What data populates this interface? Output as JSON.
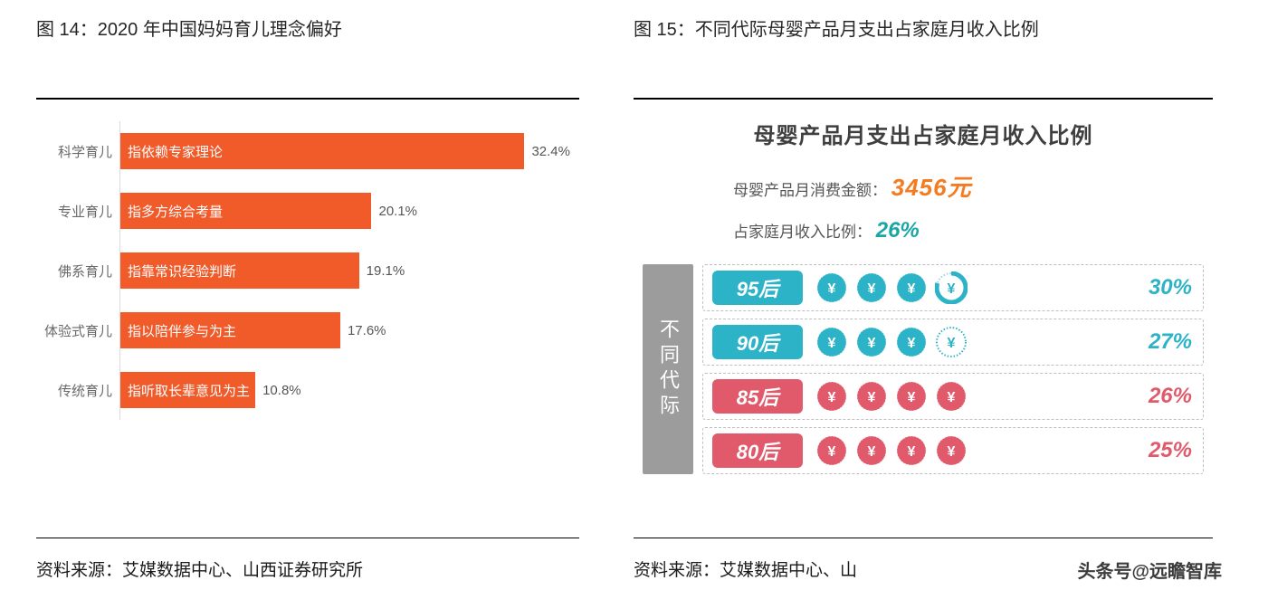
{
  "left": {
    "figure_title": "图 14：2020 年中国妈妈育儿理念偏好",
    "bars": {
      "type": "horizontal-bar",
      "xmax": 36,
      "bar_color": "#f15a29",
      "bar_text_color": "#ffffff",
      "value_text_color": "#555555",
      "axis_color": "#dcdcdc",
      "category_color": "#6a6a6a",
      "font_size": 15,
      "rows": [
        {
          "category": "科学育儿",
          "bar_label": "指依赖专家理论",
          "value": 32.4,
          "value_label": "32.4%"
        },
        {
          "category": "专业育儿",
          "bar_label": "指多方综合考量",
          "value": 20.1,
          "value_label": "20.1%"
        },
        {
          "category": "佛系育儿",
          "bar_label": "指靠常识经验判断",
          "value": 19.1,
          "value_label": "19.1%"
        },
        {
          "category": "体验式育儿",
          "bar_label": "指以陪伴参与为主",
          "value": 17.6,
          "value_label": "17.6%"
        },
        {
          "category": "传统育儿",
          "bar_label": "指听取长辈意见为主",
          "value": 10.8,
          "value_label": "10.8%"
        }
      ]
    },
    "source": "资料来源：艾媒数据中心、山西证券研究所"
  },
  "right": {
    "figure_title": "图 15：不同代际母婴产品月支出占家庭月收入比例",
    "card_title": "母婴产品月支出占家庭月收入比例",
    "stat1_label": "母婴产品月消费金额：",
    "stat1_value": "3456元",
    "stat2_label": "占家庭月收入比例：",
    "stat2_value": "26%",
    "side_label": "不同代际",
    "colors": {
      "teal": "#2db3c7",
      "rose": "#e05a6b",
      "chip_text": "#ffffff",
      "row_border": "#bfbfbf",
      "side_bg": "#9c9c9c",
      "stat_orange": "#f47b20",
      "stat_teal": "#1aa6a6"
    },
    "coin_count": 4,
    "rows": [
      {
        "label": "95后",
        "chip_color": "#2db3c7",
        "coin_color": "#2db3c7",
        "pct_color": "#2db3c7",
        "pct": "30%",
        "fill": [
          1,
          1,
          1,
          0.8
        ]
      },
      {
        "label": "90后",
        "chip_color": "#2db3c7",
        "coin_color": "#2db3c7",
        "pct_color": "#2db3c7",
        "pct": "27%",
        "fill": [
          1,
          1,
          1,
          0.1
        ]
      },
      {
        "label": "85后",
        "chip_color": "#e05a6b",
        "coin_color": "#e05a6b",
        "pct_color": "#e05a6b",
        "pct": "26%",
        "fill": [
          1,
          1,
          1,
          1
        ]
      },
      {
        "label": "80后",
        "chip_color": "#e05a6b",
        "coin_color": "#e05a6b",
        "pct_color": "#e05a6b",
        "pct": "25%",
        "fill": [
          1,
          1,
          1,
          1
        ]
      }
    ],
    "source": "资料来源：艾媒数据中心、山",
    "watermark": "头条号@远瞻智库"
  }
}
